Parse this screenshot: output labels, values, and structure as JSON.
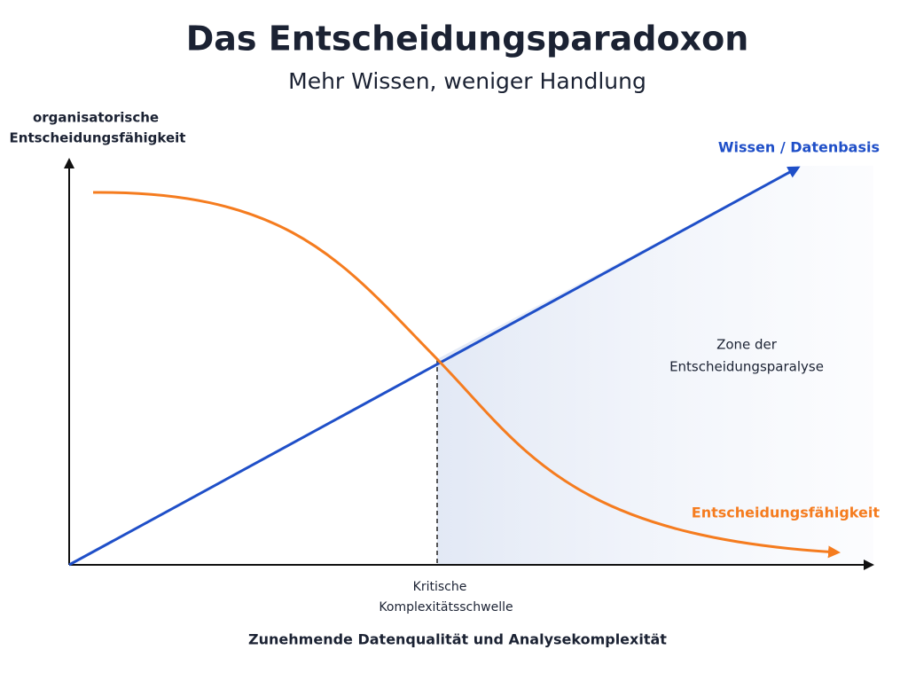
{
  "header": {
    "title": "Das Entscheidungsparadoxon",
    "subtitle": "Mehr Wissen, weniger Handlung"
  },
  "axes": {
    "y_label": [
      "organisatorische",
      "Entscheidungsfähigkeit"
    ],
    "x_label": "Zunehmende Datenqualität und Analysekomplexität"
  },
  "lines": {
    "knowledge": "Wissen / Datenbasis",
    "decision": "Entscheidungsfähigkeit"
  },
  "threshold": [
    "Kritische",
    "Komplexitätsschwelle"
  ],
  "zone": [
    "Zone der",
    "Entscheidungsparalyse"
  ]
}
